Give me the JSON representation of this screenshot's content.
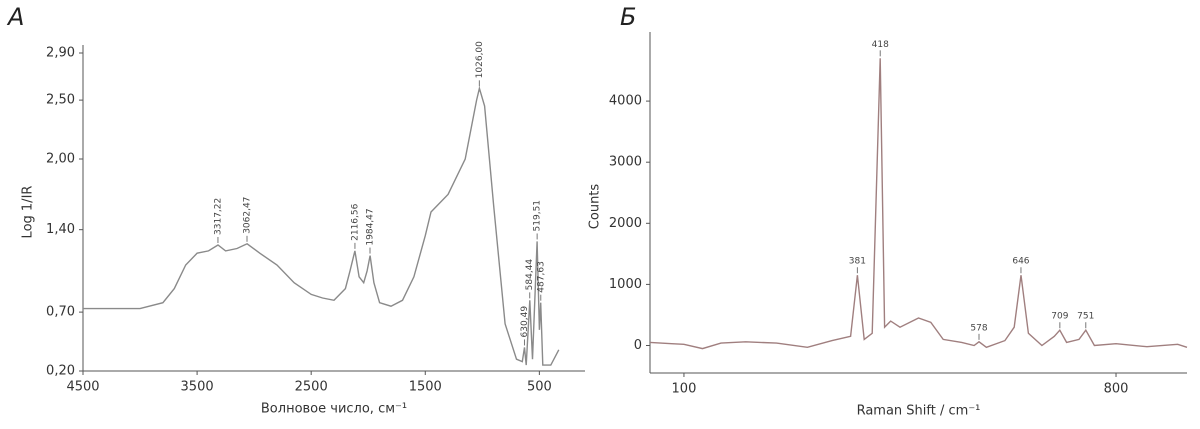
{
  "chart_data": [
    {
      "type": "line",
      "title": "А",
      "x_label": "Волновое число, см⁻¹",
      "y_label": "Log 1/IR",
      "xlim": [
        4500,
        100
      ],
      "xticks": [
        4500,
        3500,
        2500,
        1500,
        500
      ],
      "ylim": [
        0.2,
        2.9
      ],
      "yticks": [
        {
          "value": 0.2,
          "label": "0,20"
        },
        {
          "value": 0.7,
          "label": "0,70"
        },
        {
          "value": 1.4,
          "label": "1,40"
        },
        {
          "value": 2.0,
          "label": "2,00"
        },
        {
          "value": 2.5,
          "label": "2,50"
        },
        {
          "value": 2.9,
          "label": "2,90"
        }
      ],
      "annotation_style": "vertical",
      "series": [
        {
          "color": "#8a8a8a",
          "x": [
            4500,
            4000,
            3800,
            3700,
            3600,
            3500,
            3400,
            3317,
            3250,
            3150,
            3062,
            2950,
            2800,
            2650,
            2500,
            2400,
            2300,
            2200,
            2160,
            2117,
            2080,
            2040,
            2010,
            1984,
            1950,
            1900,
            1800,
            1700,
            1600,
            1500,
            1450,
            1300,
            1150,
            1050,
            1026,
            980,
            900,
            800,
            700,
            650,
            630,
            615,
            584,
            560,
            520,
            500,
            488,
            470,
            400,
            330
          ],
          "values": [
            0.73,
            0.73,
            0.78,
            0.9,
            1.1,
            1.2,
            1.22,
            1.27,
            1.22,
            1.24,
            1.28,
            1.2,
            1.1,
            0.95,
            0.85,
            0.82,
            0.8,
            0.9,
            1.05,
            1.22,
            1.0,
            0.95,
            1.05,
            1.18,
            0.95,
            0.78,
            0.75,
            0.8,
            1.0,
            1.35,
            1.55,
            1.7,
            2.0,
            2.5,
            2.6,
            2.45,
            1.6,
            0.6,
            0.3,
            0.28,
            0.4,
            0.25,
            0.8,
            0.3,
            1.3,
            0.55,
            0.78,
            0.25,
            0.25,
            0.38
          ]
        }
      ],
      "annotations": [
        {
          "x": 3317.22,
          "y": 1.27,
          "label": "3317,22"
        },
        {
          "x": 3062.47,
          "y": 1.28,
          "label": "3062,47"
        },
        {
          "x": 2116.56,
          "y": 1.22,
          "label": "2116,56"
        },
        {
          "x": 1984.47,
          "y": 1.18,
          "label": "1984,47"
        },
        {
          "x": 1026.0,
          "y": 2.6,
          "label": "1026,00"
        },
        {
          "x": 630.49,
          "y": 0.4,
          "label": "630,49"
        },
        {
          "x": 584.44,
          "y": 0.8,
          "label": "584,44"
        },
        {
          "x": 519.51,
          "y": 1.3,
          "label": "519,51"
        },
        {
          "x": 487.63,
          "y": 0.78,
          "label": "487,63"
        }
      ]
    },
    {
      "type": "line",
      "title": "Б",
      "x_label": "Raman Shift / cm⁻¹",
      "y_label": "Counts",
      "xlim": [
        45,
        915
      ],
      "xticks": [
        100,
        800
      ],
      "ylim": [
        -450,
        5000
      ],
      "yticks": [
        0,
        1000,
        2000,
        3000,
        4000
      ],
      "annotation_style": "horizontal",
      "series": [
        {
          "color": "#a07f7f",
          "x": [
            45,
            80,
            100,
            130,
            160,
            200,
            250,
            300,
            340,
            370,
            381,
            392,
            405,
            418,
            425,
            435,
            450,
            480,
            500,
            520,
            550,
            570,
            578,
            590,
            620,
            635,
            646,
            658,
            680,
            700,
            709,
            720,
            740,
            751,
            765,
            800,
            850,
            900,
            915
          ],
          "values": [
            50,
            30,
            20,
            -50,
            40,
            60,
            40,
            -30,
            80,
            150,
            1150,
            100,
            200,
            4700,
            300,
            400,
            300,
            450,
            380,
            100,
            50,
            0,
            60,
            -30,
            80,
            300,
            1150,
            200,
            0,
            150,
            250,
            50,
            100,
            250,
            0,
            30,
            -20,
            20,
            -30
          ]
        }
      ],
      "annotations": [
        {
          "x": 381,
          "y": 1150,
          "label": "381"
        },
        {
          "x": 418,
          "y": 4700,
          "label": "418"
        },
        {
          "x": 578,
          "y": 60,
          "label": "578"
        },
        {
          "x": 646,
          "y": 1150,
          "label": "646"
        },
        {
          "x": 709,
          "y": 250,
          "label": "709"
        },
        {
          "x": 751,
          "y": 250,
          "label": "751"
        }
      ]
    }
  ]
}
